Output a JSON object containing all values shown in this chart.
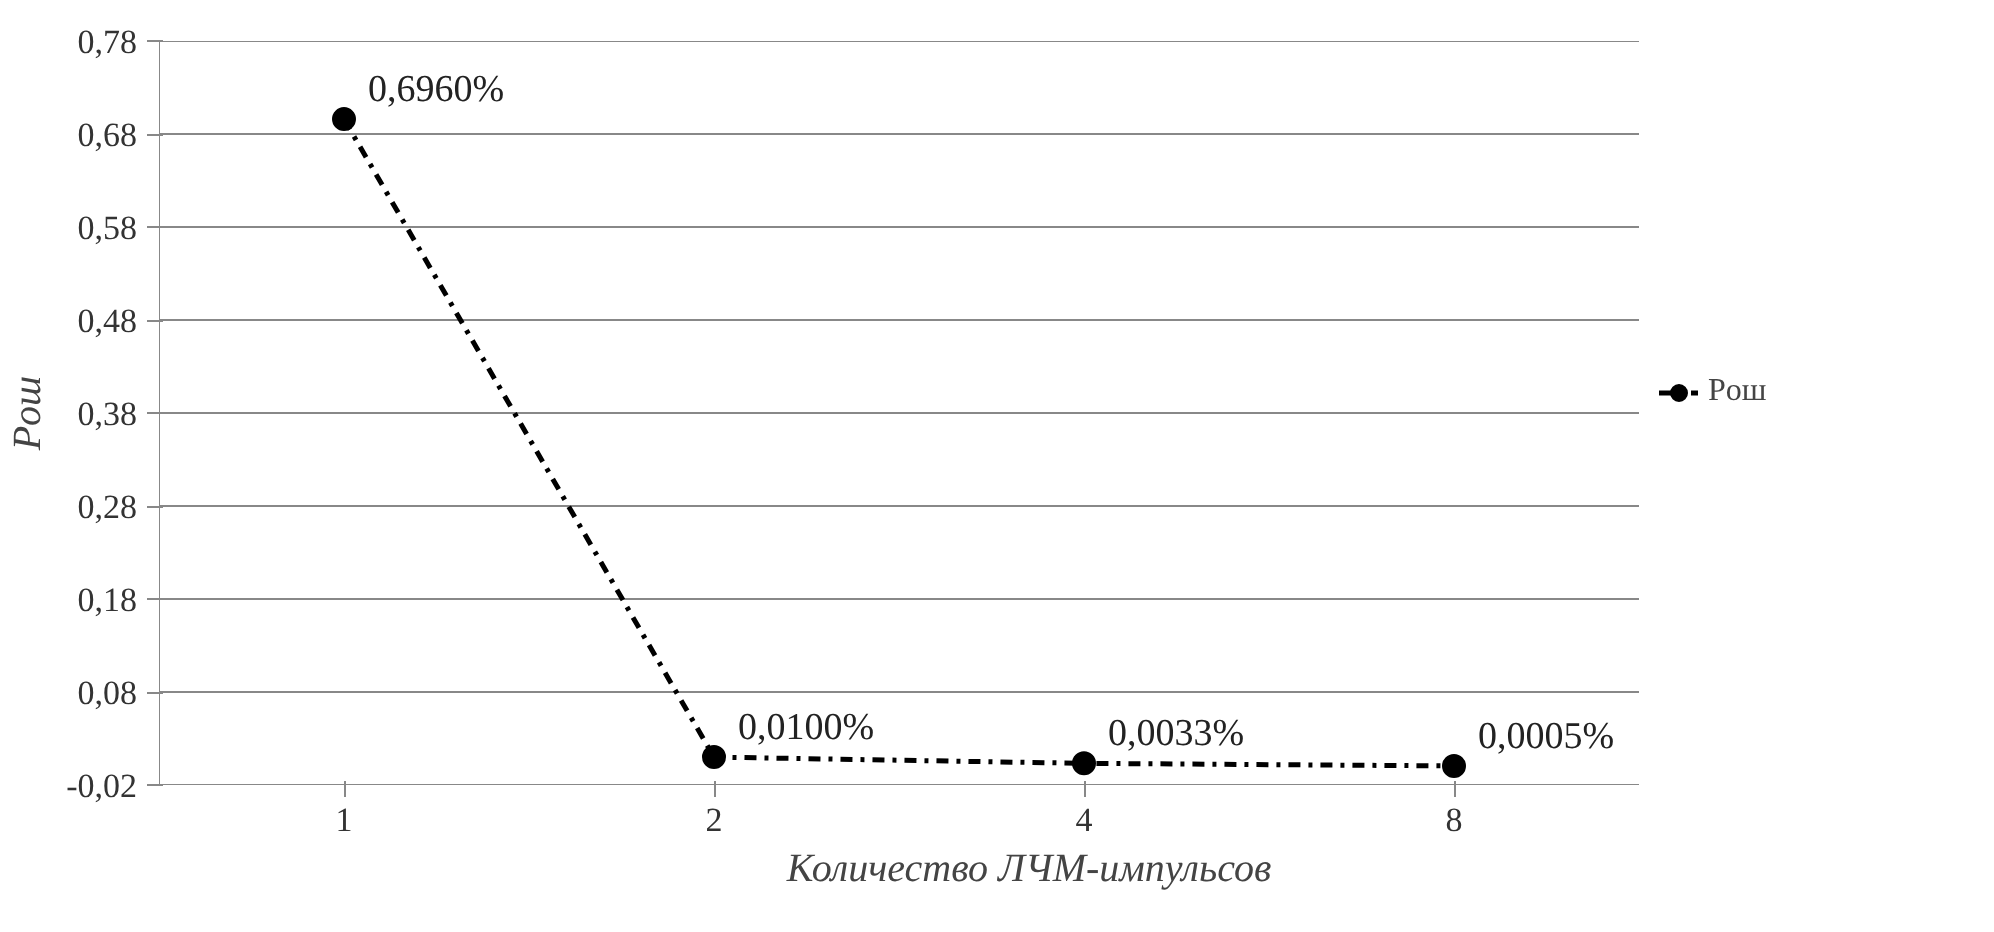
{
  "chart_data": {
    "type": "line",
    "xlabel": "Количество ЛЧМ-импульсов",
    "ylabel": "Pош",
    "categories": [
      "1",
      "2",
      "4",
      "8"
    ],
    "series": [
      {
        "name": "Pош",
        "color": "#000000",
        "values": [
          0.696,
          0.01,
          0.0033,
          0.0005
        ],
        "value_labels": [
          "0,6960%",
          "0,0100%",
          "0,0033%",
          "0,0005%"
        ]
      }
    ],
    "ylim": [
      -0.02,
      0.78
    ],
    "yticks": [
      {
        "value": -0.02,
        "label": "-0,02"
      },
      {
        "value": 0.08,
        "label": "0,08"
      },
      {
        "value": 0.18,
        "label": "0,18"
      },
      {
        "value": 0.28,
        "label": "0,28"
      },
      {
        "value": 0.38,
        "label": "0,38"
      },
      {
        "value": 0.48,
        "label": "0,48"
      },
      {
        "value": 0.58,
        "label": "0,58"
      },
      {
        "value": 0.68,
        "label": "0,68"
      },
      {
        "value": 0.78,
        "label": "0,78"
      }
    ],
    "grid": "y",
    "legend": "right",
    "marker": "circle",
    "line_style": "dashdot"
  }
}
